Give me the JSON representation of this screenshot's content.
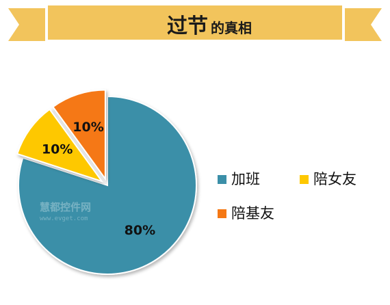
{
  "banner": {
    "title_big": "过节",
    "title_small": "的真相",
    "color": "#f2c45c"
  },
  "chart_data": {
    "type": "pie",
    "slices": [
      {
        "label": "加班",
        "value": 80,
        "display": "80%",
        "color": "#3b8fa8",
        "exploded": false
      },
      {
        "label": "陪女友",
        "value": 10,
        "display": "10%",
        "color": "#fec800",
        "exploded": true
      },
      {
        "label": "陪基友",
        "value": 10,
        "display": "10%",
        "color": "#f57814",
        "exploded": true
      }
    ],
    "legend_position": "right"
  },
  "watermark": {
    "text": "慧都控件网",
    "url": "www.evget.com"
  }
}
